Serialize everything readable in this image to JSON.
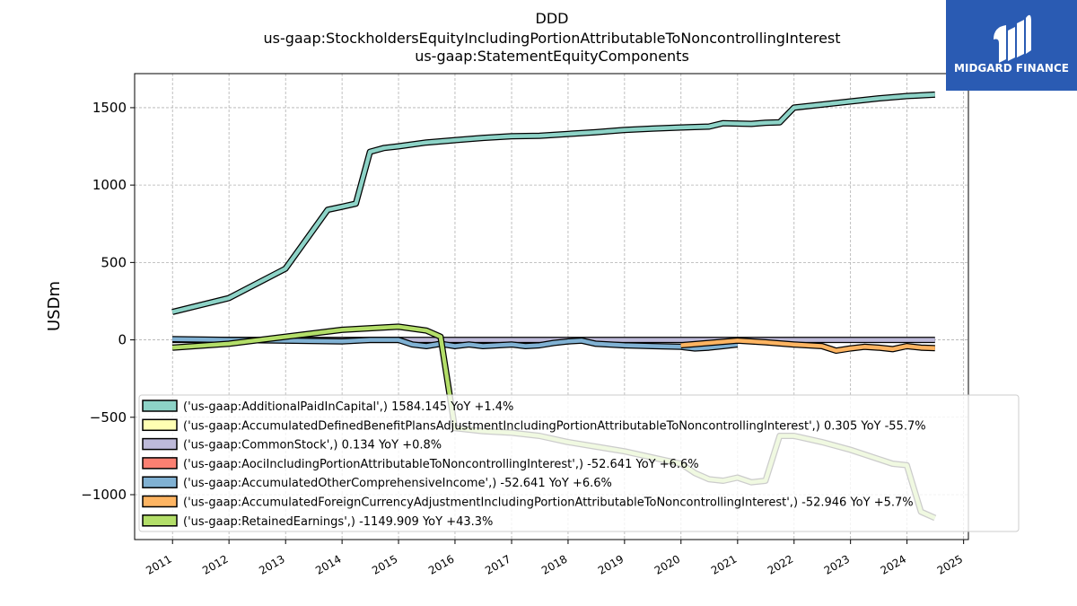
{
  "chart_data": {
    "type": "line",
    "title_lines": [
      "DDD",
      "us-gaap:StockholdersEquityIncludingPortionAttributableToNoncontrollingInterest",
      "us-gaap:StatementEquityComponents"
    ],
    "ylabel": "USDm",
    "xlabel": "",
    "ylim": [
      -1290,
      1720
    ],
    "xlim": [
      "2010-05-01",
      "2025-02-01"
    ],
    "yticks": [
      -1000,
      -500,
      0,
      500,
      1000,
      1500
    ],
    "ytick_labels": [
      "−1000",
      "−500",
      "0",
      "500",
      "1000",
      "1500"
    ],
    "xtick_labels": [
      "2011",
      "2012",
      "2013",
      "2014",
      "2015",
      "2016",
      "2017",
      "2018",
      "2019",
      "2020",
      "2021",
      "2022",
      "2023",
      "2024",
      "2025"
    ],
    "grid": true,
    "legend_placement": "lower-right",
    "series": [
      {
        "name": "('us-gaap:AdditionalPaidInCapital',) 1584.145 YoY +1.4%",
        "color": "#8dd3c7",
        "points": [
          [
            "2010-12-31",
            180
          ],
          [
            "2011-12-31",
            270
          ],
          [
            "2012-12-31",
            460
          ],
          [
            "2013-09-30",
            840
          ],
          [
            "2013-12-31",
            860
          ],
          [
            "2014-03-31",
            880
          ],
          [
            "2014-06-30",
            1215
          ],
          [
            "2014-09-30",
            1240
          ],
          [
            "2014-12-31",
            1250
          ],
          [
            "2015-06-30",
            1275
          ],
          [
            "2015-12-31",
            1290
          ],
          [
            "2016-06-30",
            1305
          ],
          [
            "2016-12-31",
            1315
          ],
          [
            "2017-06-30",
            1318
          ],
          [
            "2017-12-31",
            1330
          ],
          [
            "2018-06-30",
            1342
          ],
          [
            "2018-12-31",
            1356
          ],
          [
            "2019-06-30",
            1365
          ],
          [
            "2019-12-31",
            1372
          ],
          [
            "2020-06-30",
            1378
          ],
          [
            "2020-09-30",
            1400
          ],
          [
            "2021-03-31",
            1395
          ],
          [
            "2021-06-30",
            1402
          ],
          [
            "2021-09-30",
            1405
          ],
          [
            "2021-12-31",
            1500
          ],
          [
            "2022-06-30",
            1520
          ],
          [
            "2022-12-31",
            1540
          ],
          [
            "2023-06-30",
            1560
          ],
          [
            "2023-12-31",
            1575
          ],
          [
            "2024-06-30",
            1584
          ]
        ]
      },
      {
        "name": "('us-gaap:AccumulatedDefinedBenefitPlansAdjustmentIncludingPortionAttributableToNoncontrollingInterest',) 0.305 YoY -55.7%",
        "color": "#ffffb3",
        "points": []
      },
      {
        "name": "('us-gaap:CommonStock',) 0.134 YoY +0.8%",
        "color": "#bebada",
        "points": [
          [
            "2010-12-31",
            0
          ],
          [
            "2024-06-30",
            0
          ]
        ]
      },
      {
        "name": "('us-gaap:AociIncludingPortionAttributableToNoncontrollingInterest',) -52.641 YoY +6.6%",
        "color": "#fb8072",
        "points": []
      },
      {
        "name": "('us-gaap:AccumulatedOtherComprehensiveIncome',) -52.641 YoY +6.6%",
        "color": "#80b1d3",
        "points": [
          [
            "2010-12-31",
            5
          ],
          [
            "2011-12-31",
            0
          ],
          [
            "2012-12-31",
            -5
          ],
          [
            "2013-12-31",
            -10
          ],
          [
            "2014-06-30",
            0
          ],
          [
            "2014-12-31",
            0
          ],
          [
            "2015-03-31",
            -30
          ],
          [
            "2015-06-30",
            -40
          ],
          [
            "2015-09-30",
            -25
          ],
          [
            "2015-12-31",
            -40
          ],
          [
            "2016-03-31",
            -30
          ],
          [
            "2016-06-30",
            -40
          ],
          [
            "2016-12-31",
            -30
          ],
          [
            "2017-03-31",
            -40
          ],
          [
            "2017-06-30",
            -35
          ],
          [
            "2017-09-30",
            -20
          ],
          [
            "2017-12-31",
            -10
          ],
          [
            "2018-03-31",
            -5
          ],
          [
            "2018-06-30",
            -25
          ],
          [
            "2018-12-31",
            -35
          ],
          [
            "2019-06-30",
            -40
          ],
          [
            "2019-12-31",
            -45
          ],
          [
            "2020-03-31",
            -55
          ],
          [
            "2020-06-30",
            -50
          ],
          [
            "2020-09-30",
            -40
          ],
          [
            "2020-12-31",
            -30
          ]
        ]
      },
      {
        "name": "('us-gaap:AccumulatedForeignCurrencyAdjustmentIncludingPortionAttributableToNoncontrollingInterest',) -52.946 YoY +5.7%",
        "color": "#fdb462",
        "points": [
          [
            "2019-12-31",
            -35
          ],
          [
            "2020-06-30",
            -20
          ],
          [
            "2020-12-31",
            -5
          ],
          [
            "2021-06-30",
            -15
          ],
          [
            "2021-12-31",
            -30
          ],
          [
            "2022-06-30",
            -40
          ],
          [
            "2022-09-30",
            -70
          ],
          [
            "2022-12-31",
            -55
          ],
          [
            "2023-03-31",
            -45
          ],
          [
            "2023-06-30",
            -50
          ],
          [
            "2023-09-30",
            -60
          ],
          [
            "2023-12-31",
            -40
          ],
          [
            "2024-03-31",
            -50
          ],
          [
            "2024-06-30",
            -53
          ]
        ]
      },
      {
        "name": "('us-gaap:RetainedEarnings',) -1149.909 YoY +43.3%",
        "color": "#b3de69",
        "points": [
          [
            "2010-12-31",
            -50
          ],
          [
            "2011-12-31",
            -25
          ],
          [
            "2012-12-31",
            20
          ],
          [
            "2013-12-31",
            65
          ],
          [
            "2014-06-30",
            75
          ],
          [
            "2014-12-31",
            85
          ],
          [
            "2015-06-30",
            60
          ],
          [
            "2015-09-30",
            20
          ],
          [
            "2015-12-31",
            -570
          ],
          [
            "2016-06-30",
            -590
          ],
          [
            "2016-12-31",
            -600
          ],
          [
            "2017-06-30",
            -620
          ],
          [
            "2017-12-31",
            -660
          ],
          [
            "2018-06-30",
            -690
          ],
          [
            "2018-12-31",
            -720
          ],
          [
            "2019-06-30",
            -760
          ],
          [
            "2019-12-31",
            -800
          ],
          [
            "2020-03-31",
            -860
          ],
          [
            "2020-06-30",
            -900
          ],
          [
            "2020-09-30",
            -910
          ],
          [
            "2020-12-31",
            -890
          ],
          [
            "2021-03-31",
            -920
          ],
          [
            "2021-06-30",
            -910
          ],
          [
            "2021-09-30",
            -620
          ],
          [
            "2021-12-31",
            -620
          ],
          [
            "2022-06-30",
            -660
          ],
          [
            "2022-12-31",
            -710
          ],
          [
            "2023-06-30",
            -770
          ],
          [
            "2023-09-30",
            -800
          ],
          [
            "2023-12-31",
            -810
          ],
          [
            "2024-03-31",
            -1110
          ],
          [
            "2024-06-30",
            -1150
          ]
        ]
      }
    ]
  },
  "logo": {
    "text": "MIDGARD FINANCE",
    "bg_color": "#2a5bb3"
  }
}
